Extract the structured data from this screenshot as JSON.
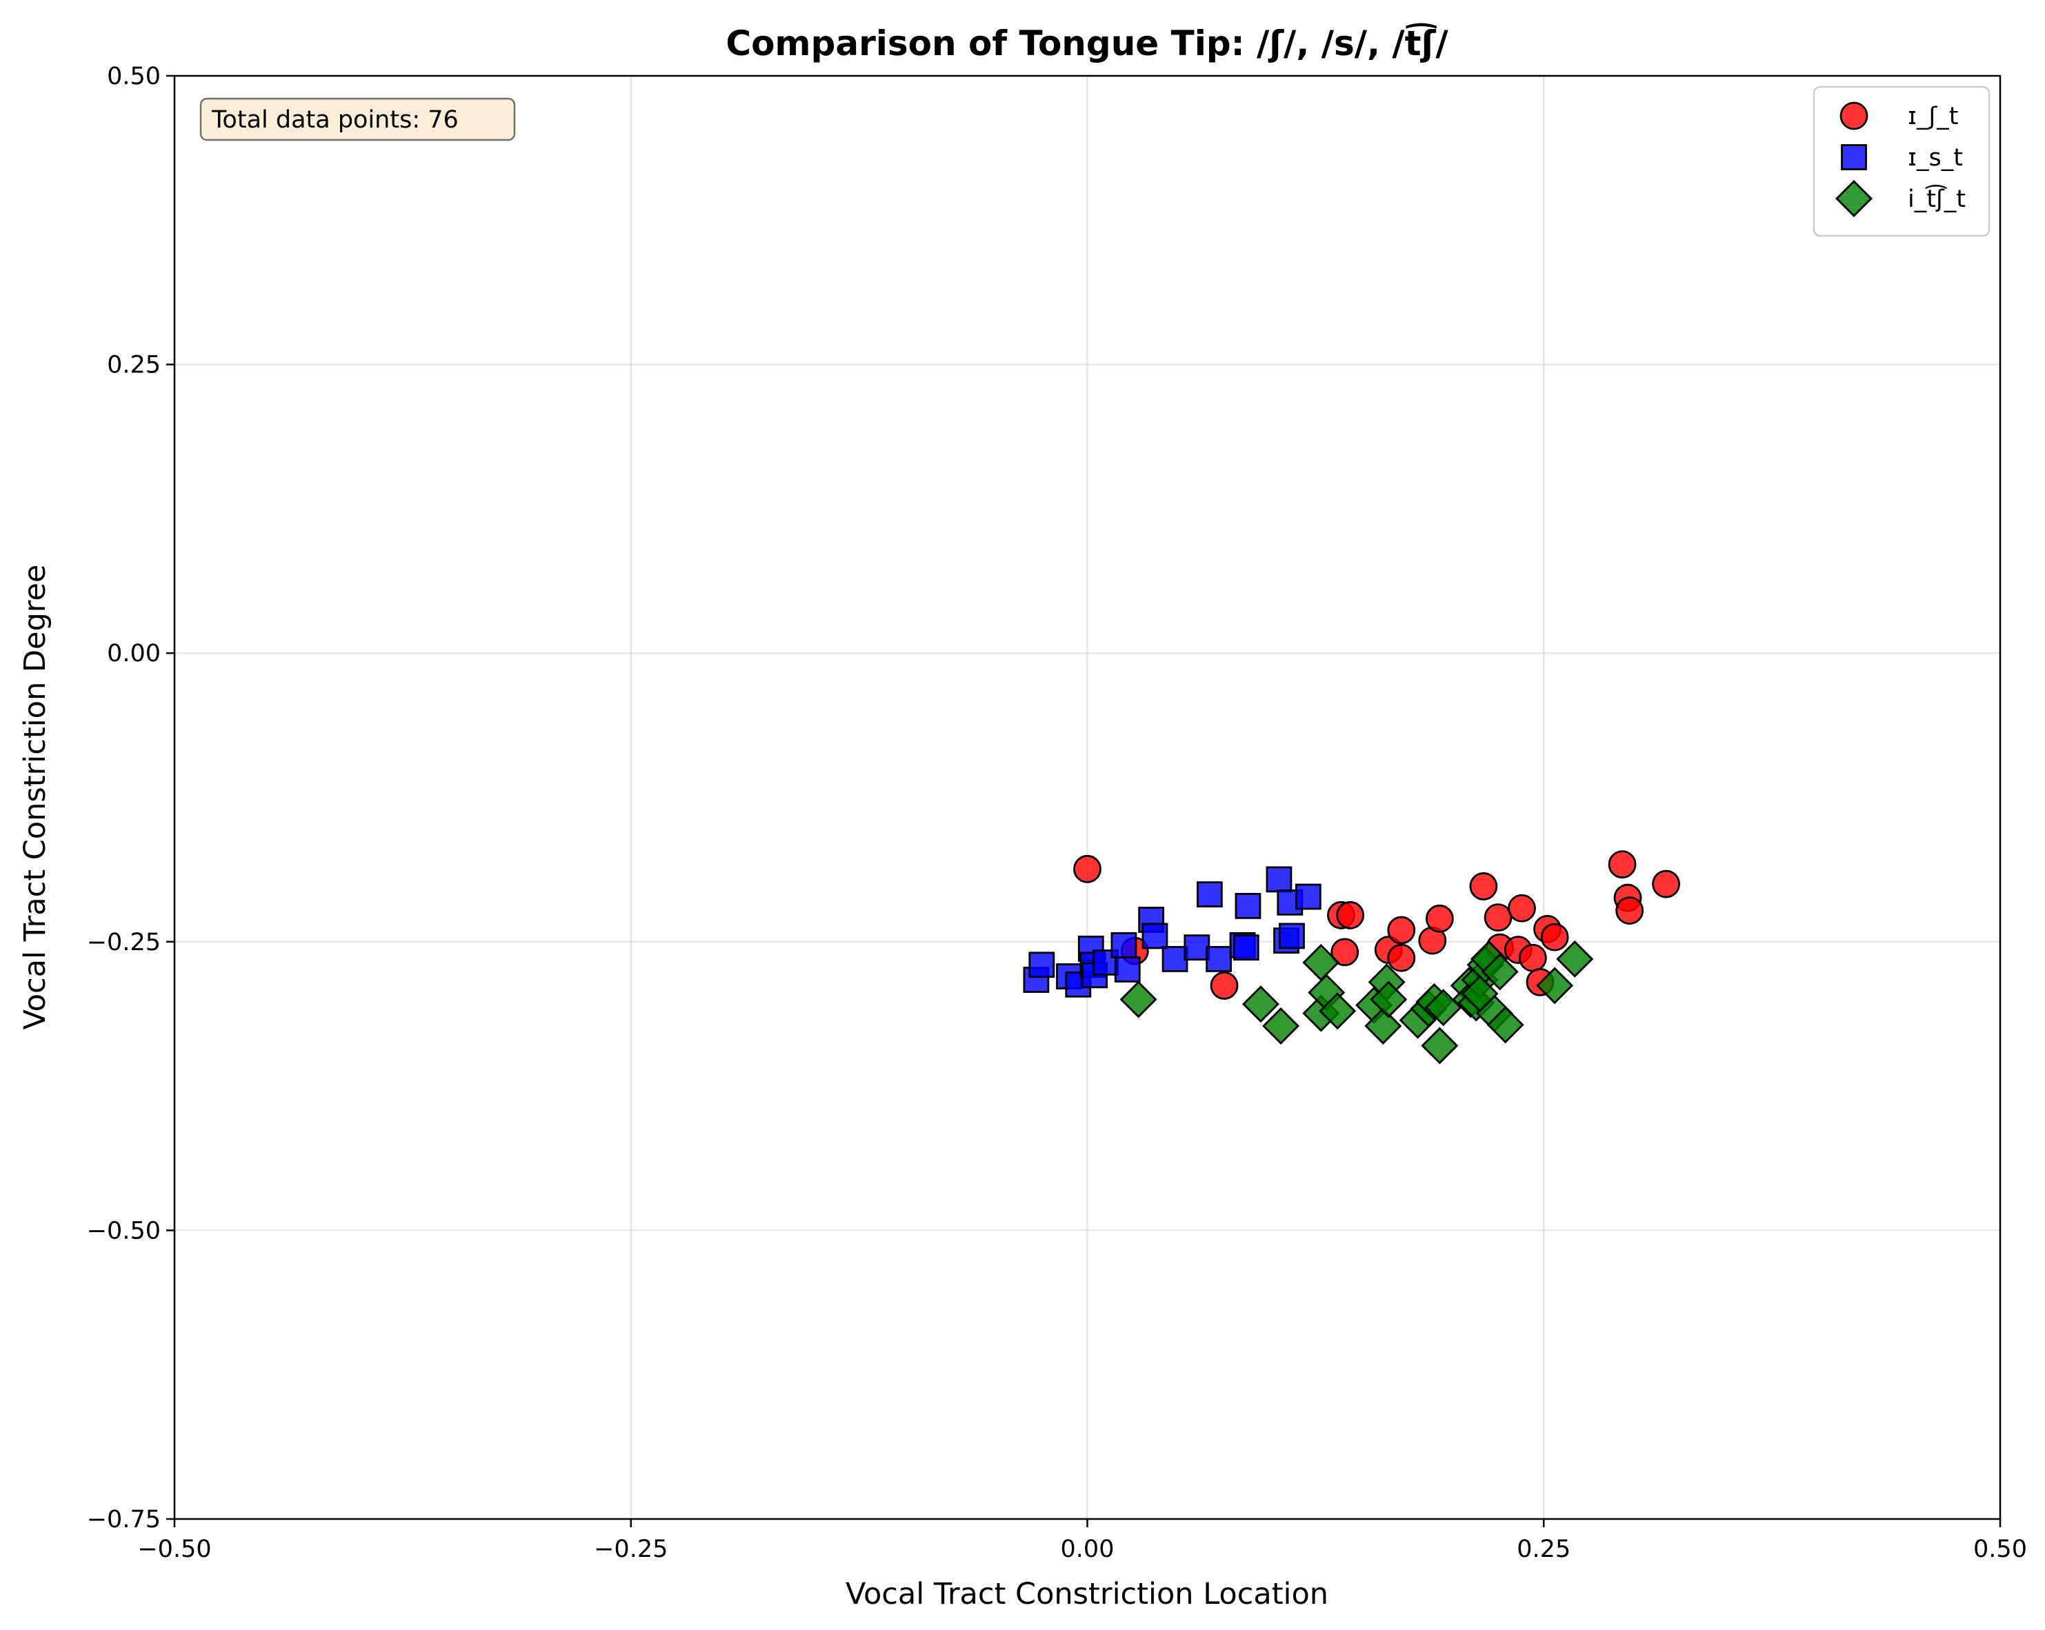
{
  "chart_data": {
    "type": "scatter",
    "title": "Comparison of Tongue Tip: /ʃ/, /s/, /t͡ʃ/",
    "xlabel": "Vocal Tract Constriction Location",
    "ylabel": "Vocal Tract Constriction Degree",
    "xlim": [
      -0.5,
      0.5
    ],
    "ylim": [
      -0.75,
      0.5
    ],
    "xticks": [
      -0.5,
      -0.25,
      0.0,
      0.25,
      0.5
    ],
    "xtick_labels": [
      "−0.50",
      "−0.25",
      "0.00",
      "0.25",
      "0.50"
    ],
    "yticks": [
      -0.75,
      -0.5,
      -0.25,
      0.0,
      0.25,
      0.5
    ],
    "ytick_labels": [
      "−0.75",
      "−0.50",
      "−0.25",
      "0.00",
      "0.25",
      "0.50"
    ],
    "grid": true,
    "legend_position": "top-right",
    "annotation": "Total data points: 76",
    "series": [
      {
        "name": "ɪ_ʃ_t",
        "marker": "circle",
        "color": "#ff0000",
        "points": [
          [
            0.0,
            -0.187
          ],
          [
            0.026,
            -0.258
          ],
          [
            0.075,
            -0.288
          ],
          [
            0.139,
            -0.227
          ],
          [
            0.144,
            -0.227
          ],
          [
            0.141,
            -0.259
          ],
          [
            0.165,
            -0.257
          ],
          [
            0.172,
            -0.24
          ],
          [
            0.172,
            -0.264
          ],
          [
            0.189,
            -0.249
          ],
          [
            0.193,
            -0.23
          ],
          [
            0.217,
            -0.202
          ],
          [
            0.225,
            -0.229
          ],
          [
            0.226,
            -0.255
          ],
          [
            0.236,
            -0.257
          ],
          [
            0.238,
            -0.221
          ],
          [
            0.244,
            -0.264
          ],
          [
            0.248,
            -0.285
          ],
          [
            0.252,
            -0.239
          ],
          [
            0.256,
            -0.246
          ],
          [
            0.293,
            -0.183
          ],
          [
            0.296,
            -0.212
          ],
          [
            0.297,
            -0.223
          ],
          [
            0.317,
            -0.2
          ]
        ]
      },
      {
        "name": "ɪ_s_t",
        "marker": "square",
        "color": "#0000ff",
        "points": [
          [
            -0.028,
            -0.283
          ],
          [
            -0.025,
            -0.27
          ],
          [
            -0.01,
            -0.28
          ],
          [
            -0.005,
            -0.287
          ],
          [
            0.002,
            -0.256
          ],
          [
            0.003,
            -0.27
          ],
          [
            0.004,
            -0.279
          ],
          [
            0.01,
            -0.268
          ],
          [
            0.02,
            -0.253
          ],
          [
            0.022,
            -0.274
          ],
          [
            0.035,
            -0.231
          ],
          [
            0.037,
            -0.245
          ],
          [
            0.048,
            -0.265
          ],
          [
            0.06,
            -0.255
          ],
          [
            0.067,
            -0.209
          ],
          [
            0.072,
            -0.265
          ],
          [
            0.085,
            -0.253
          ],
          [
            0.087,
            -0.255
          ],
          [
            0.088,
            -0.219
          ],
          [
            0.105,
            -0.196
          ],
          [
            0.109,
            -0.249
          ],
          [
            0.111,
            -0.216
          ],
          [
            0.112,
            -0.245
          ],
          [
            0.121,
            -0.211
          ]
        ]
      },
      {
        "name": "i_t͡ʃ_t",
        "marker": "diamond",
        "color": "#008000",
        "points": [
          [
            0.028,
            -0.3
          ],
          [
            0.095,
            -0.304
          ],
          [
            0.106,
            -0.323
          ],
          [
            0.128,
            -0.268
          ],
          [
            0.128,
            -0.312
          ],
          [
            0.131,
            -0.294
          ],
          [
            0.137,
            -0.31
          ],
          [
            0.157,
            -0.305
          ],
          [
            0.162,
            -0.323
          ],
          [
            0.164,
            -0.285
          ],
          [
            0.165,
            -0.3
          ],
          [
            0.181,
            -0.318
          ],
          [
            0.187,
            -0.308
          ],
          [
            0.19,
            -0.302
          ],
          [
            0.193,
            -0.34
          ],
          [
            0.195,
            -0.307
          ],
          [
            0.209,
            -0.288
          ],
          [
            0.21,
            -0.3
          ],
          [
            0.213,
            -0.303
          ],
          [
            0.215,
            -0.283
          ],
          [
            0.218,
            -0.27
          ],
          [
            0.22,
            -0.265
          ],
          [
            0.223,
            -0.312
          ],
          [
            0.226,
            -0.276
          ],
          [
            0.229,
            -0.322
          ],
          [
            0.256,
            -0.288
          ],
          [
            0.267,
            -0.265
          ],
          [
            0.215,
            -0.295
          ]
        ]
      }
    ]
  }
}
